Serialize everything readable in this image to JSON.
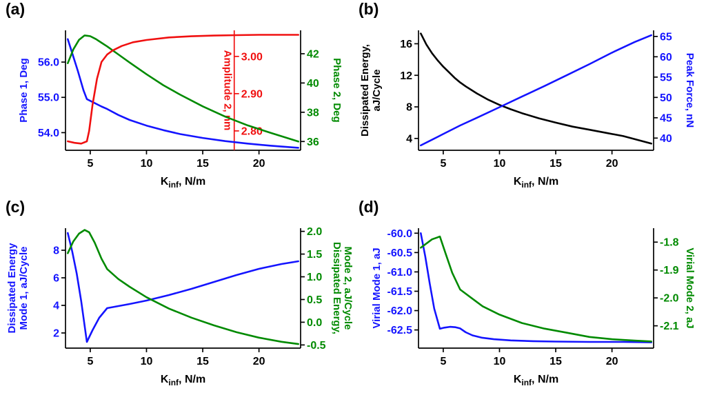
{
  "figure": {
    "background": "#ffffff"
  },
  "chart_data": [
    {
      "tag": "(a)",
      "type": "line",
      "xlabel": {
        "base": "K",
        "sub": "inf",
        "rest": ", N/m"
      },
      "xlim": [
        2.8,
        23.7
      ],
      "x_ticks": [
        5,
        10,
        15,
        20
      ],
      "x_tick_labels": [
        "5",
        "10",
        "15",
        "20"
      ],
      "axes": [
        {
          "id": "y1",
          "side": "left",
          "label_lines": [
            "Phase 1, Deg"
          ],
          "color": "#1414ff",
          "lim": [
            53.5,
            56.9
          ],
          "tick_vals": [
            54.0,
            55.0,
            56.0
          ],
          "tick_labels": [
            "54.0",
            "55.0",
            "56.0"
          ]
        },
        {
          "id": "y2",
          "side": "right",
          "label_lines": [
            "Phase 2, Deg"
          ],
          "color": "#008a00",
          "lim": [
            35.4,
            43.6
          ],
          "tick_vals": [
            36,
            38,
            40,
            42
          ],
          "tick_labels": [
            "36",
            "38",
            "40",
            "42"
          ]
        },
        {
          "id": "y3",
          "side": "inner",
          "pos": 17.8,
          "label_lines": [
            "Amplitude 2, nm"
          ],
          "color": "#f01010",
          "lim": [
            2.748,
            3.07
          ],
          "tick_vals": [
            2.8,
            2.9,
            3.0
          ],
          "tick_labels": [
            "2.80",
            "2.90",
            "3.00"
          ]
        }
      ],
      "series": [
        {
          "name": "Phase 1",
          "axis": "y1",
          "color": "#1414ff",
          "x": [
            3.0,
            3.4,
            3.9,
            4.4,
            4.7,
            5.2,
            6.0,
            6.5,
            7.5,
            8.5,
            10,
            11.5,
            13,
            15,
            17,
            19,
            21,
            23.5
          ],
          "y": [
            56.65,
            56.25,
            55.75,
            55.2,
            54.95,
            54.87,
            54.74,
            54.67,
            54.5,
            54.36,
            54.2,
            54.07,
            53.96,
            53.85,
            53.76,
            53.69,
            53.63,
            53.57
          ]
        },
        {
          "name": "Phase 2",
          "axis": "y2",
          "color": "#008a00",
          "x": [
            3.0,
            3.5,
            4.0,
            4.5,
            5.0,
            5.5,
            6.0,
            6.5,
            7.5,
            8.5,
            10,
            11.5,
            13,
            15,
            17,
            19,
            21,
            23.5
          ],
          "y": [
            41.35,
            42.3,
            42.95,
            43.25,
            43.2,
            43.0,
            42.75,
            42.5,
            41.95,
            41.4,
            40.6,
            39.85,
            39.2,
            38.4,
            37.7,
            37.1,
            36.6,
            36.0
          ]
        },
        {
          "name": "Amplitude 2",
          "axis": "y3",
          "color": "#f01010",
          "x": [
            3.0,
            3.6,
            4.2,
            4.7,
            4.9,
            5.2,
            5.6,
            6.0,
            6.5,
            7.0,
            7.8,
            8.8,
            10,
            12,
            14,
            16,
            18,
            20,
            23.5
          ],
          "y": [
            2.772,
            2.768,
            2.766,
            2.772,
            2.8,
            2.87,
            2.94,
            2.985,
            3.005,
            3.016,
            3.028,
            3.038,
            3.044,
            3.051,
            3.054,
            3.056,
            3.057,
            3.058,
            3.058
          ]
        }
      ]
    },
    {
      "tag": "(b)",
      "type": "line",
      "xlabel": {
        "base": "K",
        "sub": "inf",
        "rest": ", N/m"
      },
      "xlim": [
        2.8,
        23.7
      ],
      "x_ticks": [
        5,
        10,
        15,
        20
      ],
      "x_tick_labels": [
        "5",
        "10",
        "15",
        "20"
      ],
      "axes": [
        {
          "id": "y1",
          "side": "left",
          "label_lines": [
            "Dissipated Energy,",
            "aJ/Cycle"
          ],
          "color": "#000000",
          "lim": [
            2.5,
            17.7
          ],
          "tick_vals": [
            4,
            8,
            12,
            16
          ],
          "tick_labels": [
            "4",
            "8",
            "12",
            "16"
          ]
        },
        {
          "id": "y2",
          "side": "right",
          "label_lines": [
            "Peak Force, nN"
          ],
          "color": "#1414ff",
          "lim": [
            37.0,
            66.5
          ],
          "tick_vals": [
            40,
            45,
            50,
            55,
            60,
            65
          ],
          "tick_labels": [
            "40",
            "45",
            "50",
            "55",
            "60",
            "65"
          ]
        }
      ],
      "series": [
        {
          "name": "Dissipated Energy",
          "axis": "y1",
          "color": "#000000",
          "x": [
            3.0,
            3.5,
            4.0,
            4.5,
            5.0,
            5.5,
            6.0,
            6.5,
            7.0,
            8.0,
            9.0,
            10,
            11,
            12,
            13.5,
            15,
            16.5,
            18,
            19.5,
            21,
            23.5
          ],
          "y": [
            17.3,
            15.9,
            14.8,
            13.9,
            13.1,
            12.4,
            11.7,
            11.1,
            10.6,
            9.7,
            8.9,
            8.25,
            7.7,
            7.2,
            6.55,
            6.0,
            5.5,
            5.1,
            4.7,
            4.3,
            3.35
          ]
        },
        {
          "name": "Peak Force",
          "axis": "y2",
          "color": "#1414ff",
          "x": [
            3.0,
            4,
            5,
            6.5,
            8,
            10,
            12,
            14,
            16,
            18,
            20,
            22,
            23.5
          ],
          "y": [
            38.2,
            39.6,
            41.0,
            43.1,
            45.0,
            47.6,
            50.2,
            52.8,
            55.5,
            58.2,
            61.0,
            63.6,
            65.3
          ]
        }
      ]
    },
    {
      "tag": "(c)",
      "type": "line",
      "xlabel": {
        "base": "K",
        "sub": "inf",
        "rest": ", N/m"
      },
      "xlim": [
        2.8,
        23.7
      ],
      "x_ticks": [
        5,
        10,
        15,
        20
      ],
      "x_tick_labels": [
        "5",
        "10",
        "15",
        "20"
      ],
      "axes": [
        {
          "id": "y1",
          "side": "left",
          "label_lines": [
            "Dissipated Energy",
            "Mode 1, aJ/Cycle"
          ],
          "color": "#1414ff",
          "lim": [
            0.9,
            9.6
          ],
          "tick_vals": [
            2,
            4,
            6,
            8
          ],
          "tick_labels": [
            "2",
            "4",
            "6",
            "8"
          ]
        },
        {
          "id": "y2",
          "side": "right",
          "label_lines": [
            "Dissipated Energy,",
            "Mode 2, aJ/Cycle"
          ],
          "color": "#008a00",
          "lim": [
            -0.57,
            2.07
          ],
          "tick_vals": [
            -0.5,
            0.0,
            0.5,
            1.0,
            1.5,
            2.0
          ],
          "tick_labels": [
            "-0.5",
            "0.0",
            "0.5",
            "1.0",
            "1.5",
            "2.0"
          ]
        }
      ],
      "series": [
        {
          "name": "Dissipated Energy Mode 1",
          "axis": "y1",
          "color": "#1414ff",
          "x": [
            3.0,
            3.4,
            3.8,
            4.2,
            4.7,
            5.2,
            5.8,
            6.5,
            7.5,
            8.5,
            10,
            12,
            14,
            16,
            18,
            20,
            22,
            23.5
          ],
          "y": [
            9.25,
            7.9,
            6.3,
            4.3,
            1.35,
            2.2,
            3.1,
            3.8,
            3.95,
            4.1,
            4.35,
            4.75,
            5.2,
            5.7,
            6.2,
            6.65,
            7.0,
            7.2
          ]
        },
        {
          "name": "Dissipated Energy Mode 2",
          "axis": "y2",
          "color": "#008a00",
          "x": [
            3.0,
            3.5,
            4.0,
            4.5,
            4.9,
            5.4,
            6.0,
            6.5,
            7.5,
            8.5,
            10,
            12,
            14,
            16,
            18,
            20,
            22,
            23.5
          ],
          "y": [
            1.52,
            1.78,
            1.95,
            2.03,
            1.98,
            1.75,
            1.4,
            1.17,
            0.95,
            0.78,
            0.55,
            0.3,
            0.1,
            -0.07,
            -0.22,
            -0.34,
            -0.43,
            -0.48
          ]
        }
      ]
    },
    {
      "tag": "(d)",
      "type": "line",
      "xlabel": {
        "base": "K",
        "sub": "inf",
        "rest": ", N/m"
      },
      "xlim": [
        2.8,
        23.7
      ],
      "x_ticks": [
        5,
        10,
        15,
        20
      ],
      "x_tick_labels": [
        "5",
        "10",
        "15",
        "20"
      ],
      "axes": [
        {
          "id": "y1",
          "side": "left",
          "label_lines": [
            "Virial Mode 1, aJ"
          ],
          "color": "#1414ff",
          "lim": [
            -62.97,
            -59.87
          ],
          "tick_vals": [
            -62.5,
            -62.0,
            -61.5,
            -61.0,
            -60.5,
            -60.0
          ],
          "tick_labels": [
            "-62.5",
            "-62.0",
            "-61.5",
            "-61.0",
            "-60.5",
            "-60.0"
          ]
        },
        {
          "id": "y2",
          "side": "right",
          "label_lines": [
            "Virial Mode 2, aJ"
          ],
          "color": "#008a00",
          "lim": [
            -2.18,
            -1.75
          ],
          "tick_vals": [
            -2.1,
            -2.0,
            -1.9,
            -1.8
          ],
          "tick_labels": [
            "-2.1",
            "-2.0",
            "-1.9",
            "-1.8"
          ]
        }
      ],
      "series": [
        {
          "name": "Virial Mode 1",
          "axis": "y1",
          "color": "#1414ff",
          "x": [
            3.0,
            3.4,
            3.8,
            4.2,
            4.7,
            5.1,
            5.6,
            6.1,
            6.5,
            7.0,
            7.6,
            8.4,
            9.5,
            11,
            13,
            15,
            18,
            21,
            23.5
          ],
          "y": [
            -60.0,
            -60.6,
            -61.3,
            -61.95,
            -62.47,
            -62.44,
            -62.42,
            -62.43,
            -62.46,
            -62.56,
            -62.64,
            -62.7,
            -62.74,
            -62.77,
            -62.79,
            -62.8,
            -62.81,
            -62.81,
            -62.82
          ]
        },
        {
          "name": "Virial Mode 2",
          "axis": "y2",
          "color": "#008a00",
          "x": [
            3.0,
            3.5,
            4.0,
            4.7,
            5.2,
            5.8,
            6.5,
            7.5,
            8.5,
            10,
            12,
            14,
            16,
            18,
            20,
            22,
            23.5
          ],
          "y": [
            -1.82,
            -1.805,
            -1.79,
            -1.78,
            -1.84,
            -1.91,
            -1.97,
            -2.0,
            -2.03,
            -2.06,
            -2.09,
            -2.11,
            -2.125,
            -2.14,
            -2.148,
            -2.153,
            -2.156
          ]
        }
      ]
    }
  ]
}
